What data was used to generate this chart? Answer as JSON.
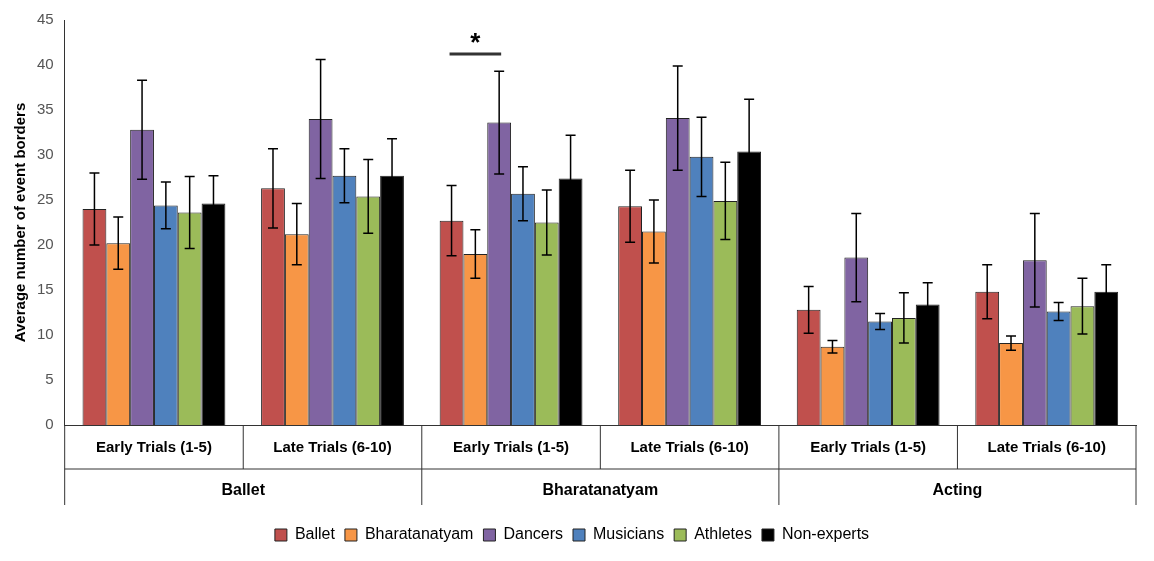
{
  "chart_data": {
    "type": "bar",
    "ylabel": "Average number of event borders",
    "categories": [
      "Early Trials (1-5)",
      "Late Trials (6-10)",
      "Early Trials (1-5)",
      "Late Trials (6-10)",
      "Early Trials (1-5)",
      "Late Trials (6-10)"
    ],
    "series": [
      {
        "name": "Ballet",
        "color": "#c0504d",
        "values": [
          24.0,
          26.3,
          22.7,
          24.3,
          12.8,
          14.8
        ],
        "errors": [
          4.0,
          4.4,
          3.9,
          4.0,
          2.6,
          3.0
        ]
      },
      {
        "name": "Bharatanatyam",
        "color": "#f79646",
        "values": [
          20.2,
          21.2,
          19.0,
          21.5,
          8.7,
          9.1
        ],
        "errors": [
          2.9,
          3.4,
          2.7,
          3.5,
          0.7,
          0.8
        ]
      },
      {
        "name": "Dancers",
        "color": "#8064a2",
        "values": [
          32.8,
          34.0,
          33.6,
          34.1,
          18.6,
          18.3
        ],
        "errors": [
          5.5,
          6.6,
          5.7,
          5.8,
          4.9,
          5.2
        ]
      },
      {
        "name": "Musicians",
        "color": "#4f81bd",
        "values": [
          24.4,
          27.7,
          25.7,
          29.8,
          11.5,
          12.6
        ],
        "errors": [
          2.6,
          3.0,
          3.0,
          4.4,
          0.9,
          1.0
        ]
      },
      {
        "name": "Athletes",
        "color": "#9bbb59",
        "values": [
          23.6,
          25.4,
          22.5,
          24.9,
          11.9,
          13.2
        ],
        "errors": [
          4.0,
          4.1,
          3.6,
          4.3,
          2.8,
          3.1
        ]
      },
      {
        "name": "Non-experts",
        "color": "#000000",
        "values": [
          24.6,
          27.7,
          27.4,
          30.4,
          13.4,
          14.8
        ],
        "errors": [
          3.1,
          4.1,
          4.8,
          5.8,
          2.4,
          3.0
        ]
      }
    ],
    "annotations": [
      "*",
      "Ballet",
      "Bharatanatyam",
      "Acting"
    ],
    "ylim": [
      0,
      45
    ],
    "yticks": [
      0,
      5,
      10,
      15,
      20,
      25,
      30,
      35,
      40,
      45
    ],
    "grid": false,
    "legend": "bottom"
  }
}
